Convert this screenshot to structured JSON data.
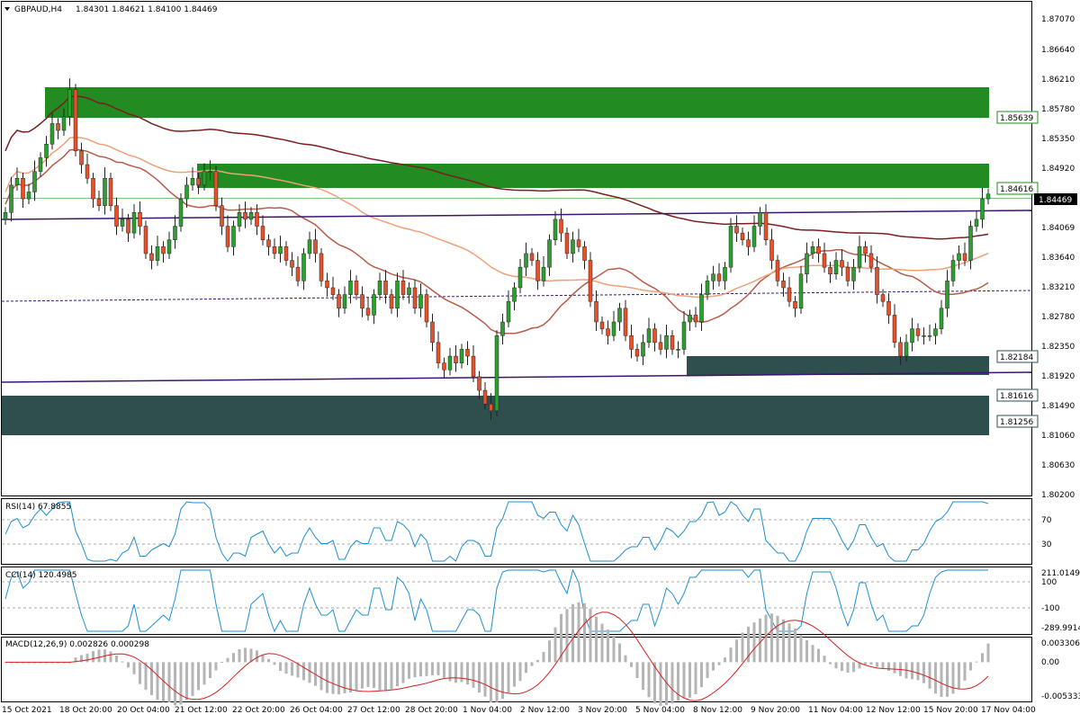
{
  "header": {
    "symbol_tf": "GBPAUD,H4",
    "ohlc": "1.84301 1.84621 1.84100 1.84469"
  },
  "indicators": {
    "rsi_label": "RSI(14) 67.8855",
    "cci_label": "CCI(14) 120.4985",
    "macd_label": "MACD(12,26,9) 0.002826 0.000298"
  },
  "price_axis": [
    "1.87070",
    "1.86640",
    "1.86210",
    "1.85780",
    "1.85350",
    "1.84920",
    "1.84069",
    "1.83640",
    "1.83210",
    "1.82780",
    "1.82350",
    "1.81920",
    "1.81490",
    "1.81060",
    "1.80630",
    "1.80200"
  ],
  "price_tags": {
    "zone_top": "1.85639",
    "zone_mid": "1.84616",
    "current": "1.84469",
    "support_a": "1.82184",
    "support_b": "1.81616",
    "support_c": "1.81256"
  },
  "rsi_axis": [
    "70",
    "30"
  ],
  "cci_axis": [
    "211.0149",
    "100",
    "-100",
    "-289.9914"
  ],
  "macd_axis": [
    "0.003306",
    "0.00",
    "-0.005333"
  ],
  "time_axis": [
    "15 Oct 2021",
    "18 Oct 20:00",
    "20 Oct 04:00",
    "21 Oct 12:00",
    "22 Oct 20:00",
    "26 Oct 04:00",
    "27 Oct 12:00",
    "28 Oct 20:00",
    "1 Nov 04:00",
    "2 Nov 12:00",
    "3 Nov 20:00",
    "5 Nov 04:00",
    "8 Nov 12:00",
    "9 Nov 20:00",
    "11 Nov 04:00",
    "12 Nov 12:00",
    "15 Nov 20:00",
    "17 Nov 04:00"
  ],
  "colors": {
    "bull": "#2ca02c",
    "bear": "#e8502a",
    "zone_green": "#228b22",
    "zone_dark": "#2f4f4f",
    "ma_slow": "#7a1f1f",
    "ma_mid": "#f0a078",
    "ma_fast": "#b85c4a",
    "channel": "#3b1570",
    "osc_line": "#1e8fd0",
    "macd_hist": "#b5b5b5",
    "macd_signal": "#d42020"
  },
  "chart_data": {
    "type": "candlestick",
    "symbol": "GBPAUD",
    "timeframe": "H4",
    "ylim": [
      1.8005,
      1.8728
    ],
    "closes": [
      1.842,
      1.846,
      1.847,
      1.844,
      1.845,
      1.848,
      1.85,
      1.852,
      1.855,
      1.854,
      1.856,
      1.86,
      1.851,
      1.849,
      1.847,
      1.844,
      1.843,
      1.847,
      1.843,
      1.84,
      1.841,
      1.839,
      1.842,
      1.84,
      1.836,
      1.835,
      1.837,
      1.836,
      1.838,
      1.84,
      1.844,
      1.846,
      1.847,
      1.846,
      1.848,
      1.848,
      1.843,
      1.84,
      1.837,
      1.84,
      1.842,
      1.841,
      1.842,
      1.84,
      1.838,
      1.837,
      1.836,
      1.837,
      1.835,
      1.834,
      1.832,
      1.836,
      1.838,
      1.836,
      1.832,
      1.831,
      1.83,
      1.828,
      1.83,
      1.832,
      1.83,
      1.828,
      1.827,
      1.83,
      1.832,
      1.83,
      1.828,
      1.832,
      1.83,
      1.831,
      1.828,
      1.83,
      1.826,
      1.823,
      1.82,
      1.819,
      1.821,
      1.82,
      1.822,
      1.821,
      1.818,
      1.816,
      1.814,
      1.813,
      1.824,
      1.826,
      1.829,
      1.831,
      1.834,
      1.836,
      1.835,
      1.832,
      1.834,
      1.838,
      1.841,
      1.839,
      1.836,
      1.838,
      1.837,
      1.835,
      1.829,
      1.826,
      1.825,
      1.824,
      1.826,
      1.828,
      1.824,
      1.822,
      1.821,
      1.823,
      1.825,
      1.823,
      1.822,
      1.824,
      1.822,
      1.822,
      1.826,
      1.827,
      1.826,
      1.83,
      1.832,
      1.833,
      1.832,
      1.834,
      1.84,
      1.839,
      1.838,
      1.837,
      1.84,
      1.842,
      1.838,
      1.835,
      1.832,
      1.831,
      1.829,
      1.828,
      1.833,
      1.836,
      1.837,
      1.836,
      1.834,
      1.833,
      1.835,
      1.834,
      1.832,
      1.834,
      1.837,
      1.836,
      1.834,
      1.83,
      1.829,
      1.827,
      1.823,
      1.821,
      1.823,
      1.825,
      1.824,
      1.824,
      1.824,
      1.825,
      1.828,
      1.832,
      1.835,
      1.836,
      1.835,
      1.84,
      1.841,
      1.844,
      1.8447
    ],
    "rsi": {
      "period": 14,
      "last": 67.8855,
      "levels": [
        70,
        30
      ],
      "ylim": [
        0,
        100
      ]
    },
    "cci": {
      "period": 14,
      "last": 120.4985,
      "levels": [
        100,
        -100
      ],
      "ylim": [
        -289.9914,
        211.0149
      ]
    },
    "macd": {
      "fast": 12,
      "slow": 26,
      "signal": 9,
      "macd": 0.002826,
      "signal_value": 0.000298,
      "ylim": [
        -0.005333,
        0.003306
      ]
    }
  }
}
